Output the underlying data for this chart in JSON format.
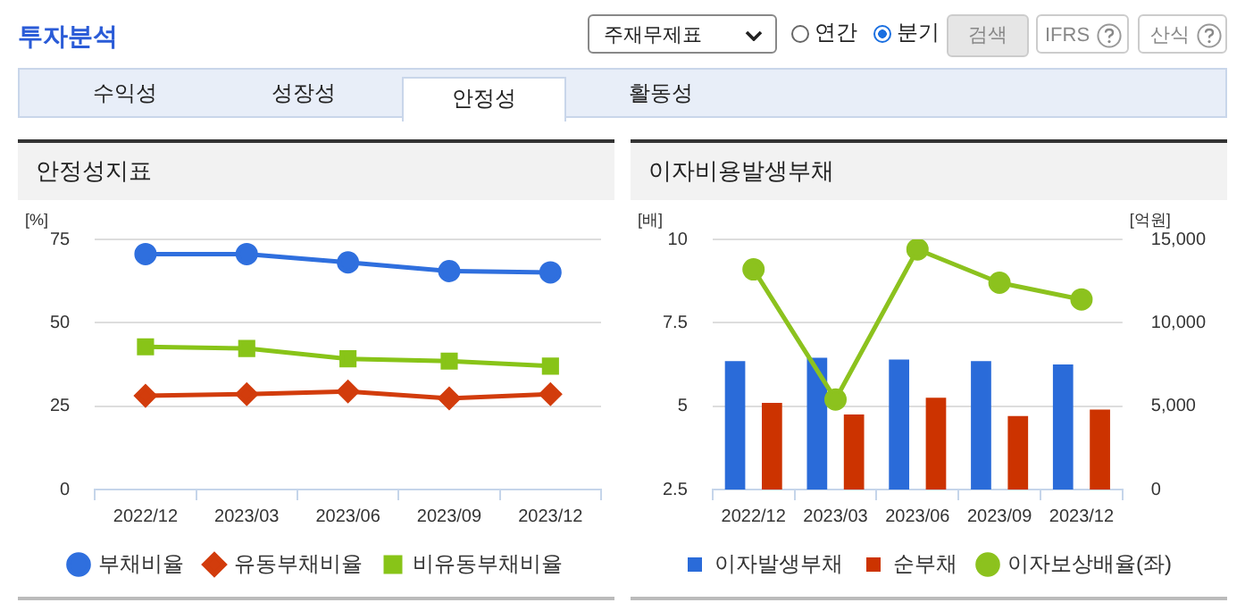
{
  "chart_data": [
    {
      "type": "other",
      "title": "투자분석",
      "annotations": [
        "주재무제표",
        "연간",
        "분기",
        "검색",
        "IFRS",
        "산식",
        "수익성",
        "성장성",
        "안정성",
        "활동성"
      ]
    },
    {
      "type": "line",
      "title": "안정성지표",
      "ylabel": "[%]",
      "categories": [
        "2022/12",
        "2023/03",
        "2023/06",
        "2023/09",
        "2023/12"
      ],
      "series": [
        {
          "name": "부채비율",
          "color": "#2f6fde",
          "marker": "circle",
          "values": [
            70.6,
            70.6,
            68.1,
            65.5,
            65.1
          ]
        },
        {
          "name": "유동부채비율",
          "color": "#d23c0c",
          "marker": "diamond",
          "values": [
            28.1,
            28.6,
            29.4,
            27.3,
            28.6
          ]
        },
        {
          "name": "비유동부채비율",
          "color": "#88c418",
          "marker": "square",
          "values": [
            42.8,
            42.3,
            39.2,
            38.5,
            37.0
          ]
        }
      ],
      "ylim": [
        0,
        75
      ],
      "yticks": [
        0,
        25,
        50,
        75
      ],
      "grid": "y",
      "legend": "bottom"
    },
    {
      "type": "bar",
      "title": "이자비용발생부채",
      "ylabel": "[배]",
      "y2label": "[억원]",
      "categories": [
        "2022/12",
        "2023/03",
        "2023/06",
        "2023/09",
        "2023/12"
      ],
      "series": [
        {
          "name": "이자발생부채",
          "color": "#2a6bd9",
          "axis": "y2",
          "values": [
            7700,
            7900,
            7800,
            7700,
            7500
          ]
        },
        {
          "name": "순부채",
          "color": "#cc3300",
          "axis": "y2",
          "values": [
            5200,
            4500,
            5500,
            4400,
            4800
          ]
        },
        {
          "name": "이자보상배율(좌)",
          "type": "line",
          "color": "#8cc21e",
          "marker": "circle",
          "axis": "y",
          "values": [
            9.1,
            5.2,
            9.7,
            8.7,
            8.2
          ]
        }
      ],
      "ylim": [
        2.5,
        10
      ],
      "yticks": [
        2.5,
        5,
        7.5,
        10
      ],
      "y2lim": [
        0,
        15000
      ],
      "y2ticks": [
        0,
        {
          "value": 5000,
          "label": "5,000"
        },
        {
          "value": 10000,
          "label": "10,000"
        },
        {
          "value": 15000,
          "label": "15,000"
        }
      ],
      "grid": "y",
      "legend": "bottom"
    }
  ]
}
